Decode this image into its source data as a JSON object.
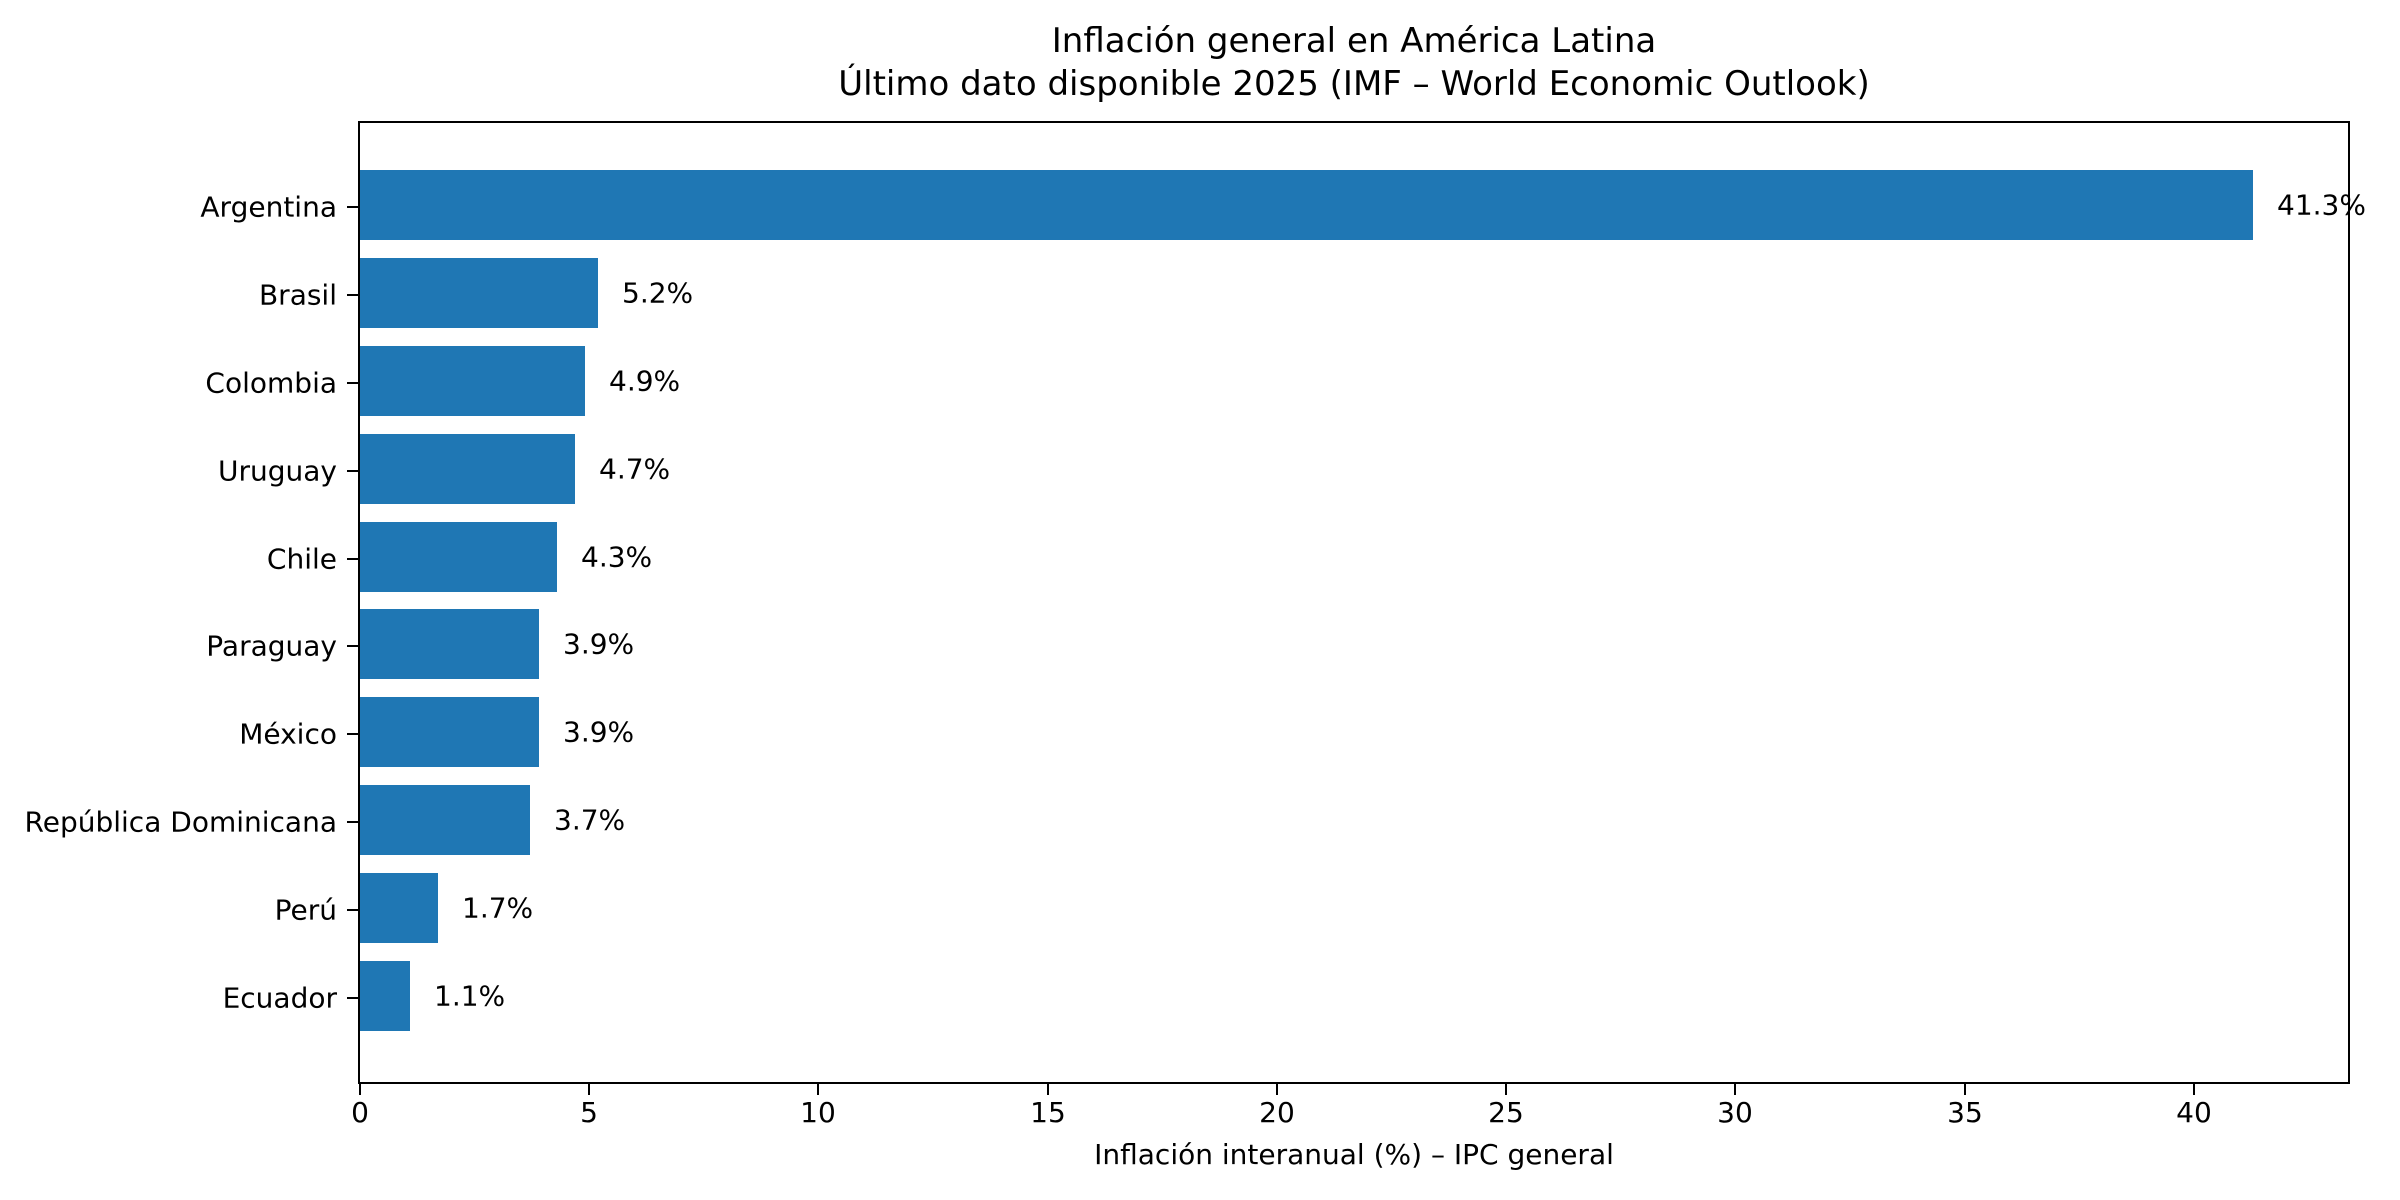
{
  "chart_data": {
    "type": "bar",
    "orientation": "horizontal",
    "title": "Inflación general en América Latina",
    "subtitle": "Último dato disponible 2025 (IMF – World Economic Outlook)",
    "xlabel": "Inflación interanual (%) – IPC general",
    "categories": [
      "Argentina",
      "Brasil",
      "Colombia",
      "Uruguay",
      "Chile",
      "Paraguay",
      "México",
      "República Dominicana",
      "Perú",
      "Ecuador"
    ],
    "values": [
      41.3,
      5.2,
      4.9,
      4.7,
      4.3,
      3.9,
      3.9,
      3.7,
      1.7,
      1.1
    ],
    "value_labels": [
      "41.3%",
      "5.2%",
      "4.9%",
      "4.7%",
      "4.3%",
      "3.9%",
      "3.9%",
      "3.7%",
      "1.7%",
      "1.1%"
    ],
    "xticks": [
      0,
      5,
      10,
      15,
      20,
      25,
      30,
      35,
      40
    ],
    "xlim": [
      0,
      43.365
    ],
    "bar_color": "#1f77b4",
    "text_color": "#000000",
    "background_color": "#ffffff",
    "grid": false,
    "legend": "none"
  }
}
